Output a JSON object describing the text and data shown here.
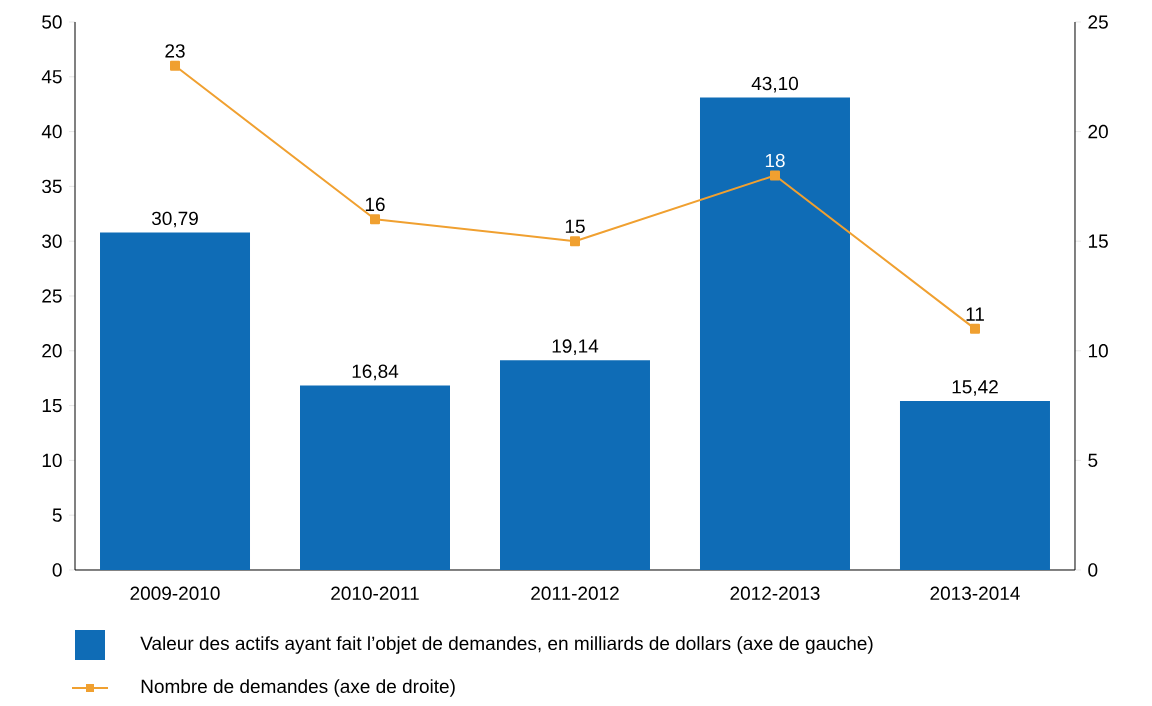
{
  "chart_data": {
    "type": "bar",
    "categories": [
      "2009-2010",
      "2010-2011",
      "2011-2012",
      "2012-2013",
      "2013-2014"
    ],
    "series": [
      {
        "name": "Valeur des actifs ayant fait l’objet de demandes, en milliards de dollars (axe de gauche)",
        "color": "#0f6cb6",
        "values": [
          30.79,
          16.84,
          19.14,
          43.1,
          15.42
        ],
        "value_labels": [
          "30,79",
          "16,84",
          "19,14",
          "43,10",
          "15,42"
        ]
      },
      {
        "name": "Nombre de demandes (axe de droite)",
        "type": "line",
        "axis": "y2",
        "color": "#f0a030",
        "marker": "square",
        "line_style": "solid",
        "values": [
          23,
          16,
          15,
          18,
          11
        ]
      }
    ],
    "ylim": [
      0,
      50
    ],
    "yticks": [
      0,
      5,
      10,
      15,
      20,
      25,
      30,
      35,
      40,
      45,
      50
    ],
    "y2lim": [
      0,
      25
    ],
    "y2ticks": [
      0,
      5,
      10,
      15,
      20,
      25
    ],
    "data_labels": true,
    "grid": false,
    "legend": "bottom"
  }
}
